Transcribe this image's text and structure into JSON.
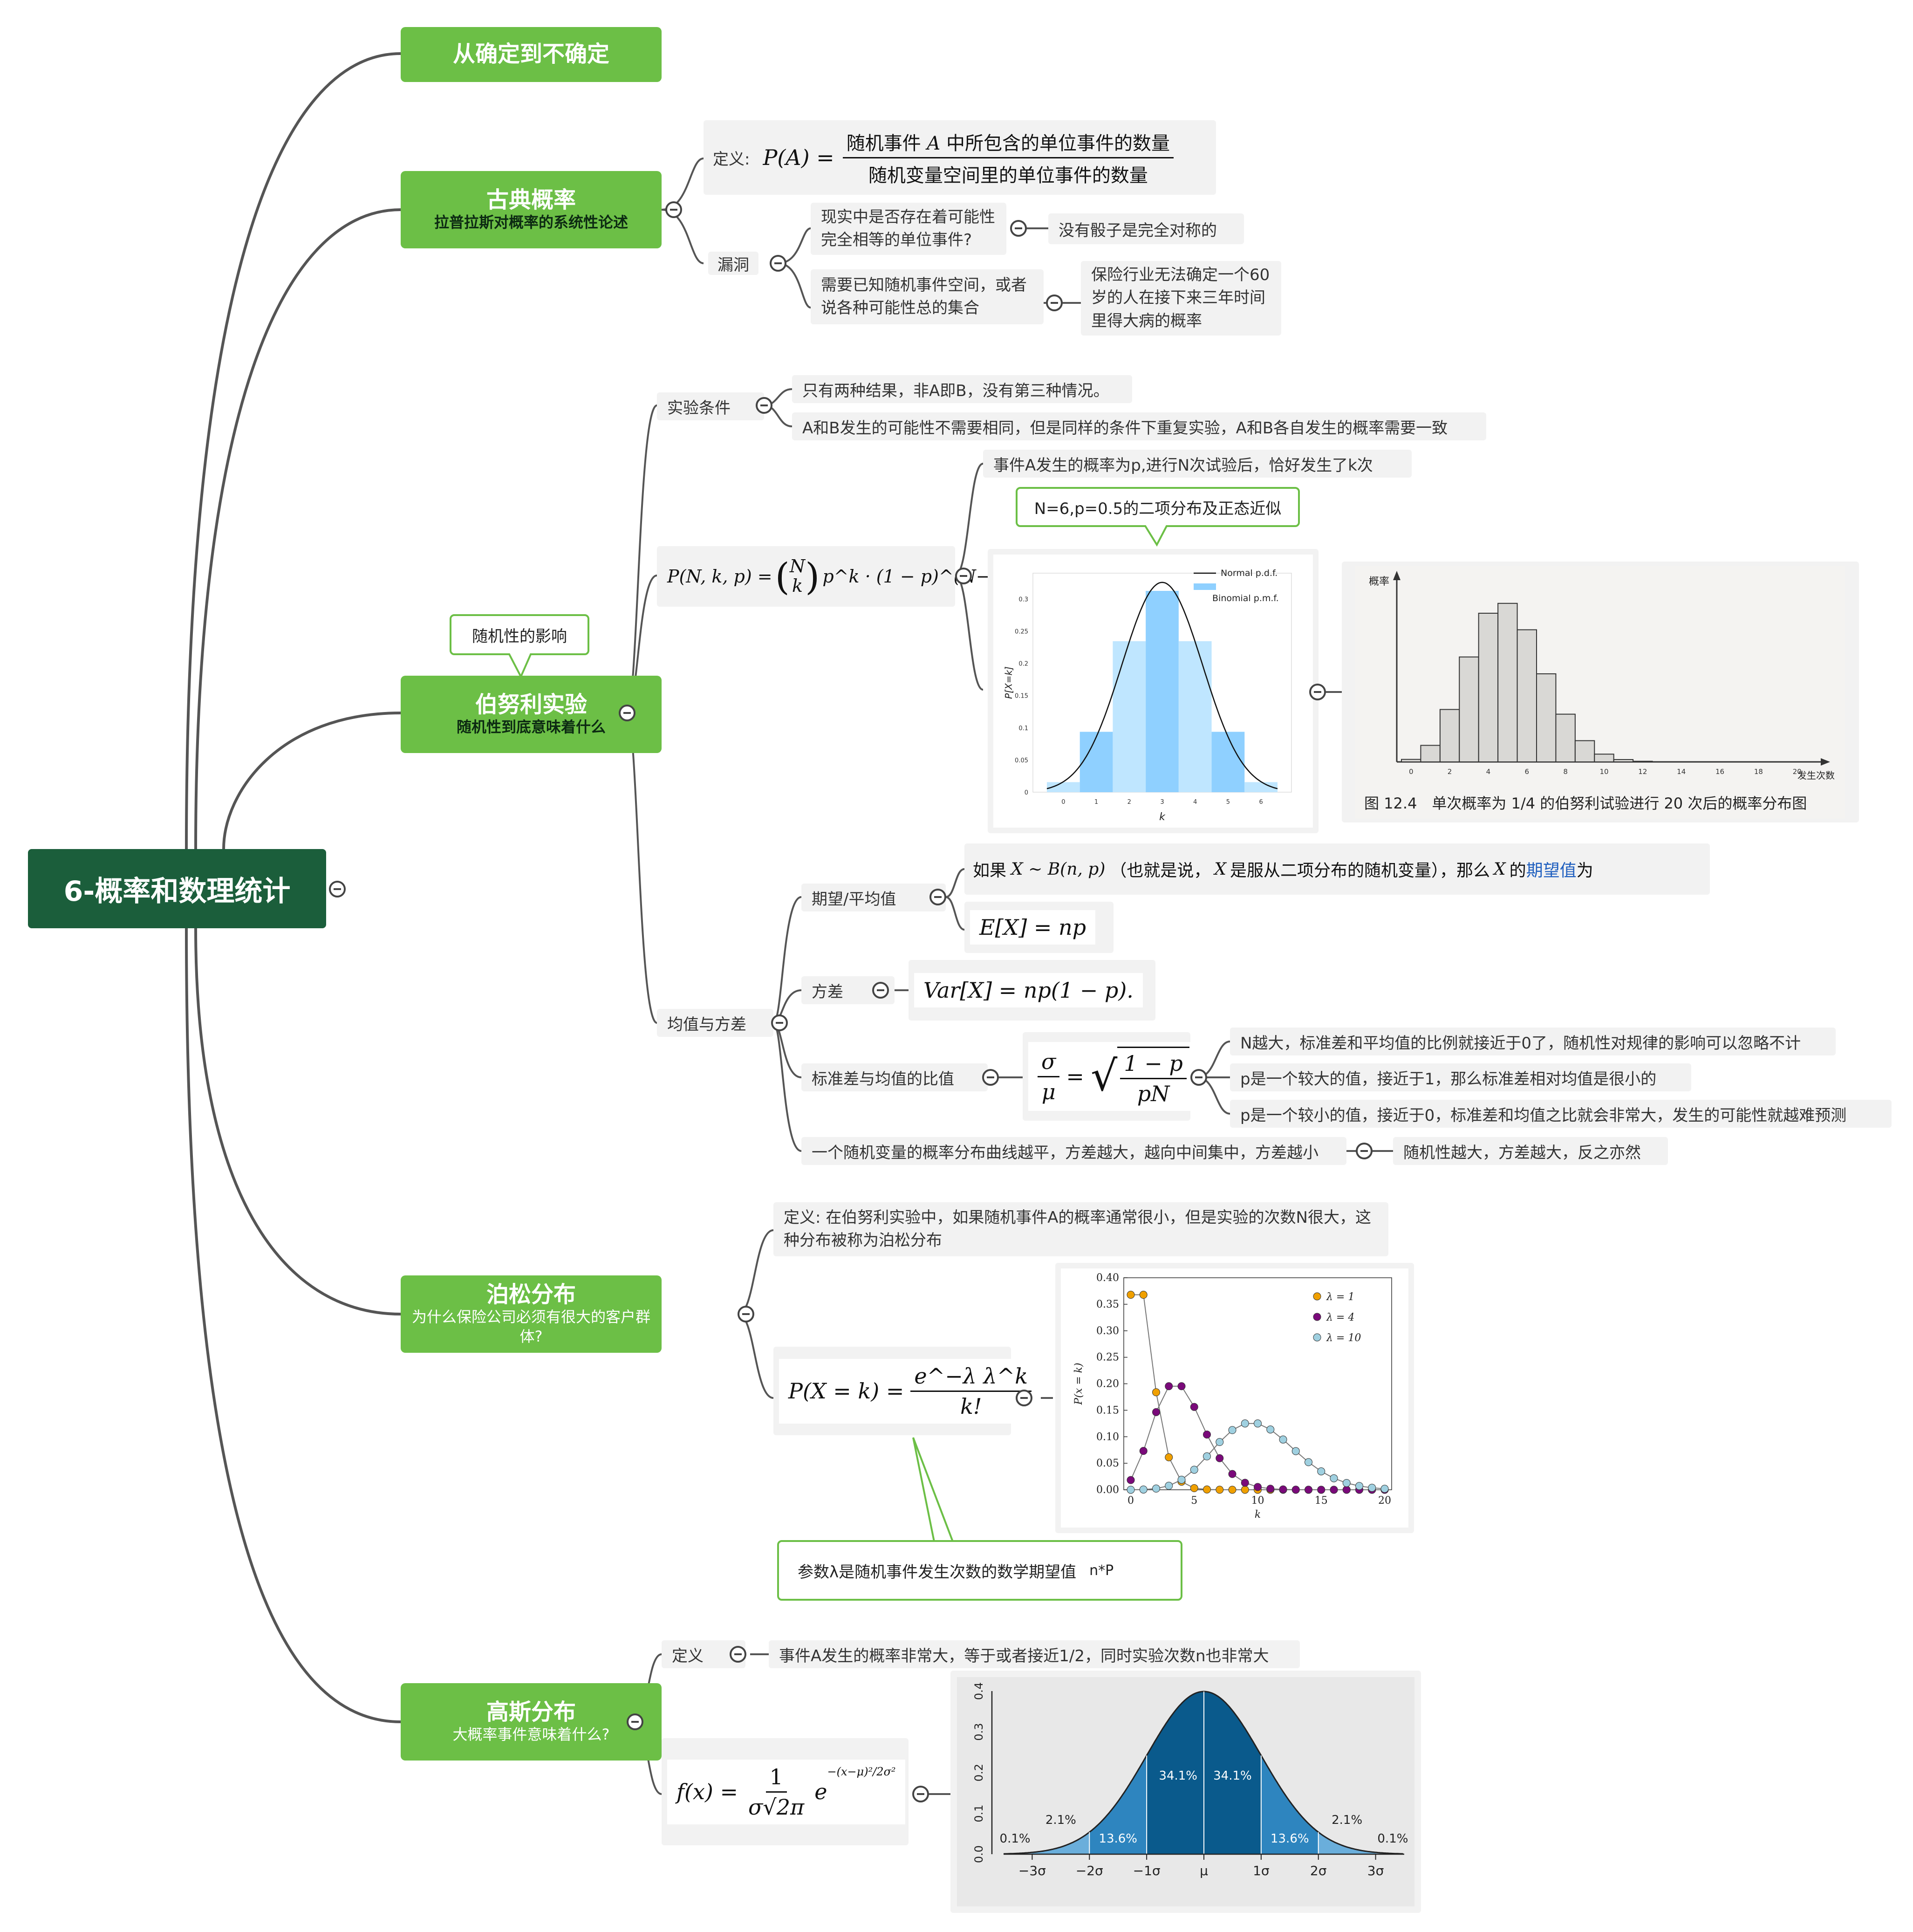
{
  "root": {
    "title": "6-概率和数理统计"
  },
  "branches": {
    "b1": {
      "title": "从确定到不确定"
    },
    "b2": {
      "title": "古典概率",
      "subtitle": "拉普拉斯对概率的系统性论述",
      "definition_label": "定义:",
      "definition_lhs": "P(A) =",
      "definition_num_a": "随机事件",
      "definition_num_var": "A",
      "definition_num_b": "中所包含的单位事件的数量",
      "definition_den": "随机变量空间里的单位事件的数量",
      "flaw_label": "漏洞",
      "flaw1": "现实中是否存在着可能性完全相等的单位事件?",
      "flaw1_note": "没有骰子是完全对称的",
      "flaw2": "需要已知随机事件空间，或者说各种可能性总的集合",
      "flaw2_note": "保险行业无法确定一个60岁的人在接下来三年时间里得大病的概率"
    },
    "b3": {
      "title": "伯努利实验",
      "subtitle": "随机性到底意味着什么",
      "callout": "随机性的影响",
      "cond_label": "实验条件",
      "cond1": "只有两种结果，非A即B，没有第三种情况。",
      "cond2": "A和B发生的可能性不需要相同，但是同样的条件下重复实验，A和B各自发生的概率需要一致",
      "formula_lhs": "P(N, k, p) =",
      "formula_N": "N",
      "formula_k": "k",
      "formula_rhs": "p^k · (1 − p)^(N−k)",
      "formula_note": "事件A发生的概率为p,进行N次试验后，恰好发生了k次",
      "chart_callout": "N=6,p=0.5的二项分布及正态近似",
      "photo_caption": "图 12.4　单次概率为 1/4 的伯努利试验进行 20 次后的概率分布图",
      "photo_ylabel": "概率",
      "photo_xlabel": "发生次数",
      "mv_label": "均值与方差",
      "exp_label": "期望/平均值",
      "exp_text_a": "如果",
      "exp_text_b": "X ∼ B(n, p)",
      "exp_text_c": "（也就是说，",
      "exp_text_d": "X",
      "exp_text_e": "是服从二项分布的随机变量），那么",
      "exp_text_f": "X",
      "exp_text_g": "的",
      "exp_text_link": "期望值",
      "exp_text_h": "为",
      "exp_formula": "E[X] = np",
      "var_label": "方差",
      "var_formula": "Var[X] = np(1 − p).",
      "ratio_label": "标准差与均值的比值",
      "ratio_num": "σ",
      "ratio_den": "μ",
      "ratio_rad_num": "1 − p",
      "ratio_rad_den": "pN",
      "ratio1": "N越大，标准差和平均值的比例就接近于0了，随机性对规律的影响可以忽略不计",
      "ratio2": "p是一个较大的值，接近于1，那么标准差相对均值是很小的",
      "ratio3": "p是一个较小的值，接近于0，标准差和均值之比就会非常大，发生的可能性就越难预测",
      "flat": "一个随机变量的概率分布曲线越平，方差越大，越向中间集中，方差越小",
      "flat_note": "随机性越大，方差越大，反之亦然"
    },
    "b4": {
      "title": "泊松分布",
      "subtitle": "为什么保险公司必须有很大的客户群体?",
      "definition": "定义: 在伯努利实验中，如果随机事件A的概率通常很小，但是实验的次数N很大，这种分布被称为泊松分布",
      "formula_lhs": "P(X = k) =",
      "formula_num": "e^−λ λ^k",
      "formula_den": "k!",
      "callout_a": "参数λ是随机事件发生次数的数学期望值",
      "callout_b": "n*P"
    },
    "b5": {
      "title": "高斯分布",
      "subtitle": "大概率事件意味着什么?",
      "def_label": "定义",
      "def_text": "事件A发生的概率非常大，等于或者接近1/2，同时实验次数n也非常大",
      "formula_lhs": "f(x) =",
      "formula_num": "1",
      "formula_den": "σ√2π",
      "formula_exp": "e",
      "formula_exp_pow": "−(x−μ)²/2σ²"
    }
  },
  "chart_data": [
    {
      "type": "bar",
      "id": "binomial-normal",
      "xlabel": "k",
      "ylabel": "P[X=k]",
      "categories": [
        0,
        1,
        2,
        3,
        4,
        5,
        6
      ],
      "values": [
        0.0156,
        0.09375,
        0.234375,
        0.3125,
        0.234375,
        0.09375,
        0.0156
      ],
      "ylim": [
        0,
        0.34
      ],
      "yticks": [
        0,
        0.05,
        0.1,
        0.15,
        0.2,
        0.25,
        0.3
      ],
      "xticks": [
        0,
        1,
        2,
        3,
        4,
        5,
        6
      ],
      "series": [
        {
          "name": "Normal p.d.f.",
          "kind": "line",
          "mean": 3,
          "sd": 1.2247
        },
        {
          "name": "Binomial p.m.f.",
          "kind": "bar"
        }
      ],
      "legend": "top-right",
      "colors": {
        "bar": "#8fd0ff",
        "barLight": "#bfe6ff",
        "line": "#111111"
      }
    },
    {
      "type": "bar",
      "id": "photo-binomial-20",
      "ylabel": "概率",
      "xlabel": "发生次数",
      "categories": [
        0,
        1,
        2,
        3,
        4,
        5,
        6,
        7,
        8,
        9,
        10,
        11,
        12,
        13,
        14,
        15,
        16,
        17,
        18,
        19,
        20
      ],
      "values": [
        0.0032,
        0.0211,
        0.0669,
        0.1339,
        0.1897,
        0.2023,
        0.1686,
        0.1124,
        0.0609,
        0.0271,
        0.0099,
        0.003,
        0.0008,
        0.0002,
        0,
        0,
        0,
        0,
        0,
        0,
        0
      ],
      "xticks": [
        0,
        2,
        4,
        6,
        8,
        10,
        12,
        14,
        16,
        18,
        20
      ]
    },
    {
      "type": "line",
      "id": "poisson",
      "xlabel": "k",
      "ylabel": "P(x = k)",
      "xlim": [
        0,
        20
      ],
      "ylim": [
        0,
        0.4
      ],
      "yticks": [
        0,
        0.05,
        0.1,
        0.15,
        0.2,
        0.25,
        0.3,
        0.35,
        0.4
      ],
      "xticks": [
        0,
        5,
        10,
        15,
        20
      ],
      "legend": "top-right",
      "series": [
        {
          "name": "λ = 1",
          "lambda": 1,
          "color": "#f0a000"
        },
        {
          "name": "λ = 4",
          "lambda": 4,
          "color": "#7a0a7a"
        },
        {
          "name": "λ = 10",
          "lambda": 10,
          "color": "#9fd0e0"
        }
      ]
    },
    {
      "type": "area",
      "id": "gaussian",
      "xticks": [
        "−3σ",
        "−2σ",
        "−1σ",
        "μ",
        "1σ",
        "2σ",
        "3σ"
      ],
      "yticks": [
        "0.0",
        "0.1",
        "0.2",
        "0.3",
        "0.4"
      ],
      "ylim": [
        0,
        0.4
      ],
      "regions": [
        "0.1%",
        "2.1%",
        "13.6%",
        "34.1%",
        "34.1%",
        "13.6%",
        "2.1%",
        "0.1%"
      ],
      "colors": {
        "dark": "#0a5a8c",
        "mid": "#2e85bf",
        "light": "#6aaedb",
        "tail": "#9cc8e6"
      }
    }
  ]
}
